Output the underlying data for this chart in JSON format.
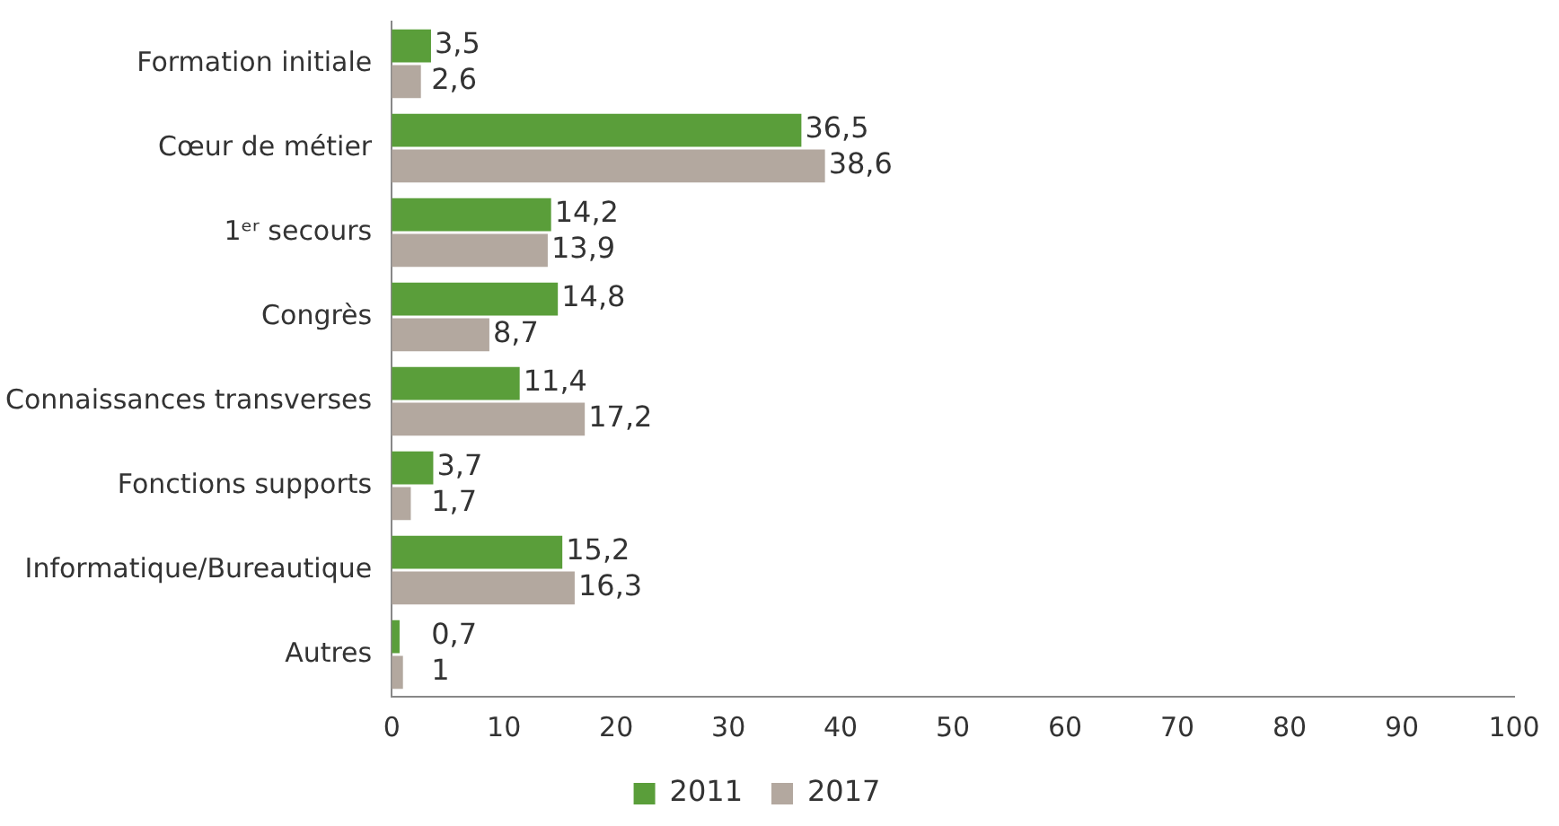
{
  "chart_data": {
    "type": "bar",
    "orientation": "horizontal",
    "categories": [
      "Formation initiale",
      "Cœur de métier",
      "1ᵉʳ secours",
      "Congrès",
      "Connaissances transverses",
      "Fonctions supports",
      "Informatique/Bureautique",
      "Autres"
    ],
    "series": [
      {
        "name": "2011",
        "color": "#5a9e3a",
        "values": [
          3.5,
          36.5,
          14.2,
          14.8,
          11.4,
          3.7,
          15.2,
          0.7
        ],
        "value_labels": [
          "3,5",
          "36,5",
          "14,2",
          "14,8",
          "11,4",
          "3,7",
          "15,2",
          "0,7"
        ]
      },
      {
        "name": "2017",
        "color": "#b3a89f",
        "values": [
          2.6,
          38.6,
          13.9,
          8.7,
          17.2,
          1.7,
          16.3,
          1
        ],
        "value_labels": [
          "2,6",
          "38,6",
          "13,9",
          "8,7",
          "17,2",
          "1,7",
          "16,3",
          "1"
        ]
      }
    ],
    "xlim": [
      0,
      100
    ],
    "xticks": [
      0,
      10,
      20,
      30,
      40,
      50,
      60,
      70,
      80,
      90,
      100
    ],
    "grid": false,
    "legend": "bottom"
  }
}
